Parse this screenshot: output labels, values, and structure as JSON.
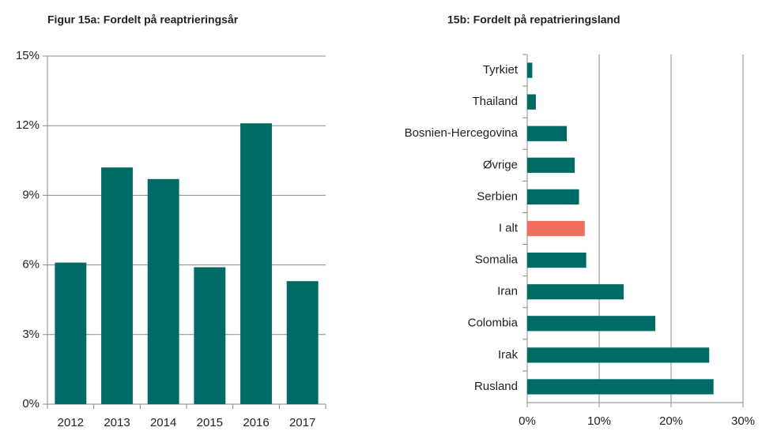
{
  "chart_data": [
    {
      "type": "bar",
      "title": "Figur 15a: Fordelt på reaptrieringsår",
      "categories": [
        "2012",
        "2013",
        "2014",
        "2015",
        "2016",
        "2017"
      ],
      "values": [
        6.1,
        10.2,
        9.7,
        5.9,
        12.1,
        5.3
      ],
      "color": "#006b65",
      "ylim": [
        0,
        15
      ],
      "yticks": [
        {
          "value": 0,
          "label": "0%"
        },
        {
          "value": 3,
          "label": "3%"
        },
        {
          "value": 6,
          "label": "6%"
        },
        {
          "value": 9,
          "label": "9%"
        },
        {
          "value": 12,
          "label": "12%"
        },
        {
          "value": 15,
          "label": "15%"
        }
      ],
      "grid": true
    },
    {
      "type": "hbar",
      "title": "15b: Fordelt på repatrieringsland",
      "categories": [
        "Tyrkiet",
        "Thailand",
        "Bosnien-Hercegovina",
        "Øvrige",
        "Serbien",
        "I alt",
        "Somalia",
        "Iran",
        "Colombia",
        "Irak",
        "Rusland"
      ],
      "values": [
        0.7,
        1.2,
        5.5,
        6.6,
        7.2,
        8.0,
        8.2,
        13.4,
        17.8,
        25.3,
        25.9
      ],
      "colors": [
        "#006b65",
        "#006b65",
        "#006b65",
        "#006b65",
        "#006b65",
        "#f07060",
        "#006b65",
        "#006b65",
        "#006b65",
        "#006b65",
        "#006b65"
      ],
      "xlim": [
        0,
        30
      ],
      "xticks": [
        {
          "value": 0,
          "label": "0%"
        },
        {
          "value": 10,
          "label": "10%"
        },
        {
          "value": 20,
          "label": "20%"
        },
        {
          "value": 30,
          "label": "30%"
        }
      ],
      "grid": true
    }
  ]
}
